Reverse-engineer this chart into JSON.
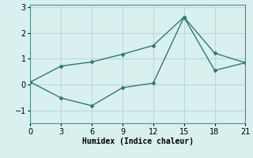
{
  "xlabel": "Humidex (Indice chaleur)",
  "x_upper": [
    0,
    3,
    6,
    9,
    12,
    15,
    18,
    21
  ],
  "y_upper": [
    0.1,
    0.72,
    0.88,
    1.18,
    1.52,
    2.62,
    1.22,
    0.85
  ],
  "x_lower": [
    0,
    3,
    6,
    9,
    12,
    15,
    18,
    21
  ],
  "y_lower": [
    0.1,
    -0.52,
    -0.82,
    -0.12,
    0.06,
    2.62,
    0.55,
    0.85
  ],
  "line_color": "#2e7b6e",
  "bg_color": "#d8f0ee",
  "grid_color": "#b8dbd8",
  "xlim": [
    0,
    21
  ],
  "ylim": [
    -1.5,
    3.1
  ],
  "xticks": [
    0,
    3,
    6,
    9,
    12,
    15,
    18,
    21
  ],
  "yticks": [
    -1,
    0,
    1,
    2,
    3
  ],
  "title_fontsize": 7,
  "label_fontsize": 7,
  "tick_fontsize": 7
}
